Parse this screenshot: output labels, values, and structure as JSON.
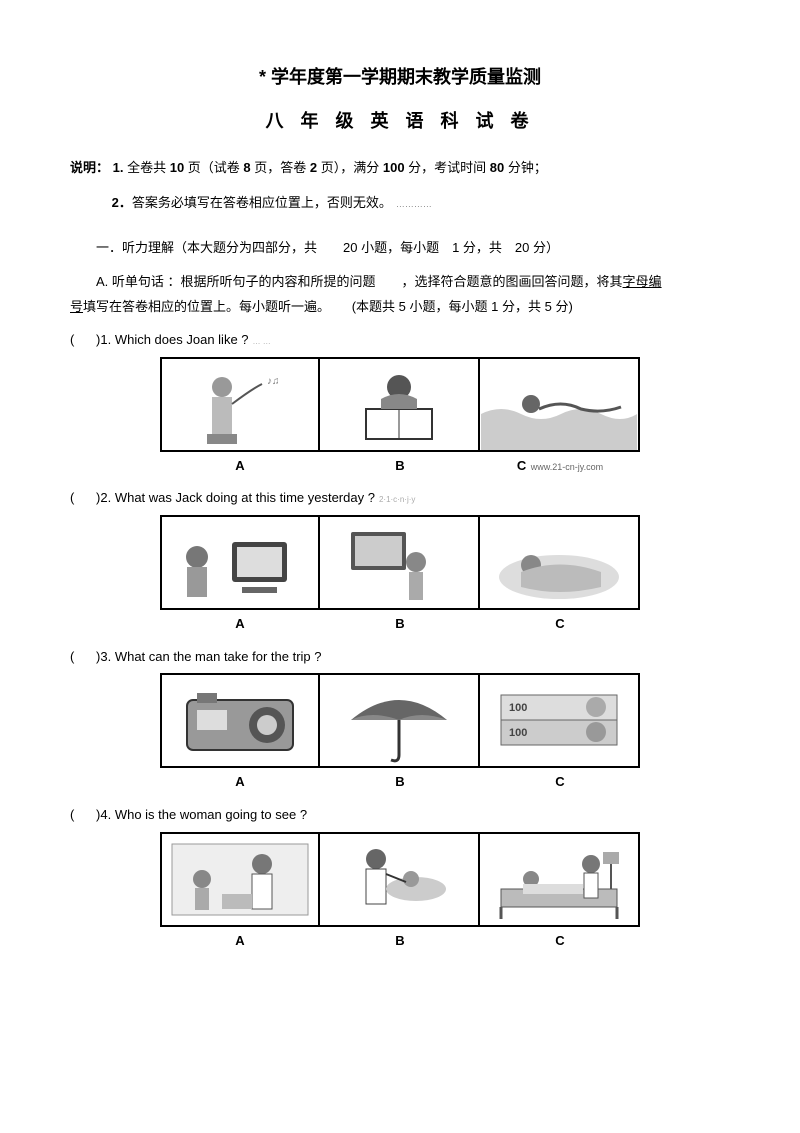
{
  "title1": "* 学年度第一学期期末教学质量监测",
  "title2": "八 年 级 英 语 科 试 卷",
  "instruction_label": "说明：",
  "instruction1_a": "1.",
  "instruction1_b": " 全卷共 ",
  "instruction1_c": "10",
  "instruction1_d": " 页（试卷 ",
  "instruction1_e": "8",
  "instruction1_f": " 页，答卷 ",
  "instruction1_g": "2",
  "instruction1_h": " 页），满分 ",
  "instruction1_i": "100",
  "instruction1_j": " 分，考试时间 ",
  "instruction1_k": "80",
  "instruction1_l": " 分钟；",
  "instruction2_a": "2．",
  "instruction2_b": "答案务必填写在答卷相应位置上，否则无效。",
  "instruction2_tiny": "…………",
  "section1": "一．听力理解（本大题分为四部分，共　　20 小题，每小题　1 分，共　20 分）",
  "sectionA_a": "A.",
  "sectionA_b": " 听单句话 ：",
  "sectionA_c": "根据所听句子的内容和所提的问题　　，选择符合题意的图画回答问题，将其",
  "sectionA_d": "字母编",
  "sectionA_e": "号",
  "sectionA_f": "填写在答卷相应的位置上。每小题听一遍。",
  "sectionA_g": "(本题共",
  "sectionA_h": " 5 ",
  "sectionA_i": "小题，每小题",
  "sectionA_j": " 1 ",
  "sectionA_k": "分，共",
  "sectionA_l": " 5 ",
  "sectionA_m": "分)",
  "questions": [
    {
      "num": "1",
      "text": "Which does Joan like ?",
      "tiny": "…  …",
      "labels": [
        "A",
        "B",
        "C"
      ],
      "watermark": "www.21-cn-jy.com",
      "icons": [
        "girl-singing",
        "boy-reading",
        "boy-swimming"
      ]
    },
    {
      "num": "2",
      "text": "What was Jack doing at this time yesterday ?",
      "tiny": "2·1·c·n·j·y",
      "labels": [
        "A",
        "B",
        "C"
      ],
      "watermark": "",
      "icons": [
        "boy-computer",
        "boy-tv",
        "boy-sleeping"
      ]
    },
    {
      "num": "3",
      "text": "What can the man take for the trip ?",
      "tiny": "",
      "labels": [
        "A",
        "B",
        "C"
      ],
      "watermark": "",
      "icons": [
        "camera",
        "umbrella",
        "money"
      ]
    },
    {
      "num": "4",
      "text": "Who is the woman going to see ?",
      "tiny": "",
      "labels": [
        "A",
        "B",
        "C"
      ],
      "watermark": "",
      "icons": [
        "doctor-boy",
        "dentist",
        "hospital-bed"
      ]
    }
  ],
  "paren_open": "(",
  "paren_close": ")",
  "colors": {
    "text": "#000000",
    "bg": "#ffffff",
    "border": "#000000",
    "tiny": "#888888"
  }
}
